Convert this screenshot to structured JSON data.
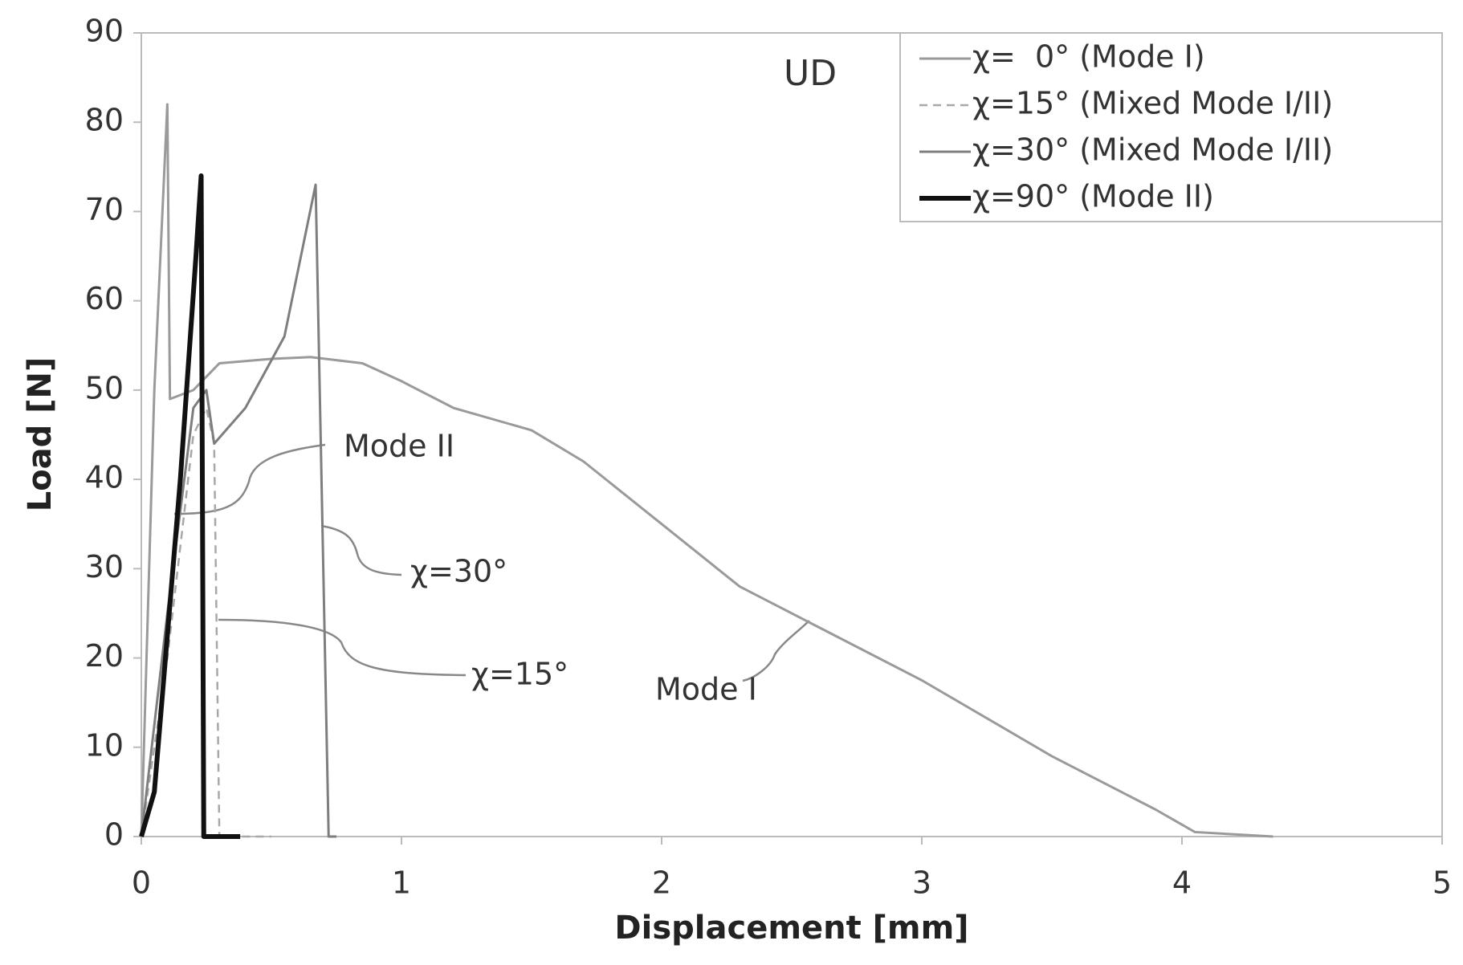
{
  "chart_data": {
    "type": "line",
    "xlabel": "Displacement [mm]",
    "ylabel": "Load [N]",
    "xlim": [
      0,
      5
    ],
    "ylim": [
      0,
      90
    ],
    "xticks": [
      0,
      1,
      2,
      3,
      4,
      5
    ],
    "yticks": [
      0,
      10,
      20,
      30,
      40,
      50,
      60,
      70,
      80,
      90
    ],
    "grid": false,
    "legend": "top-right",
    "annotations": [
      "UD",
      "Mode II",
      "χ=30°",
      "χ=15°",
      "Mode I"
    ],
    "series": [
      {
        "name": "χ=  0° (Mode I)",
        "color": "#9a9a9a",
        "line_style": "solid",
        "line_width": 3,
        "x": [
          0,
          0.05,
          0.1,
          0.11,
          0.2,
          0.3,
          0.5,
          0.65,
          0.85,
          1.0,
          1.2,
          1.5,
          1.7,
          2.0,
          2.3,
          2.6,
          3.0,
          3.5,
          3.9,
          4.05,
          4.35
        ],
        "values": [
          0,
          50,
          82,
          49,
          50,
          53,
          53.5,
          53.7,
          53,
          51,
          48,
          45.5,
          42,
          35,
          28,
          23.5,
          17.5,
          9,
          3,
          0.5,
          0
        ]
      },
      {
        "name": "χ=15° (Mixed Mode I/II)",
        "color": "#a8a8a8",
        "line_style": "dashed",
        "line_width": 2.5,
        "x": [
          0,
          0.1,
          0.2,
          0.25,
          0.28,
          0.3,
          0.5
        ],
        "values": [
          0,
          20,
          45,
          48,
          44,
          0,
          0
        ]
      },
      {
        "name": "χ=30° (Mixed Mode I/II)",
        "color": "#7e7e7e",
        "line_style": "solid",
        "line_width": 3,
        "x": [
          0,
          0.1,
          0.2,
          0.25,
          0.28,
          0.4,
          0.55,
          0.67,
          0.72,
          0.75
        ],
        "values": [
          0,
          25,
          48,
          50,
          44,
          48,
          56,
          73,
          0,
          0
        ]
      },
      {
        "name": "χ=90° (Mode II)",
        "color": "#111111",
        "line_style": "solid",
        "line_width": 6,
        "x": [
          0,
          0.05,
          0.15,
          0.21,
          0.23,
          0.24,
          0.38
        ],
        "values": [
          0,
          5,
          40,
          65,
          74,
          0,
          0
        ]
      }
    ]
  }
}
